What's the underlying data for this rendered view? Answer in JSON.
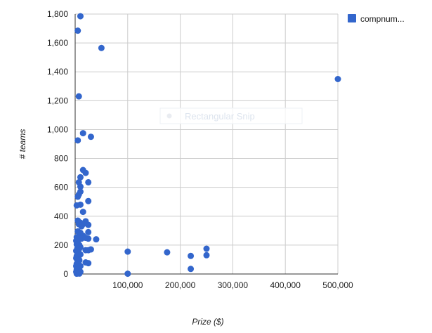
{
  "chart_data": {
    "type": "scatter",
    "title": "",
    "xlabel": "Prize ($)",
    "ylabel": "# teams",
    "xlim": [
      0,
      500000
    ],
    "ylim": [
      0,
      1800
    ],
    "x_ticks": [
      {
        "value": 100000,
        "label": "100,000"
      },
      {
        "value": 200000,
        "label": "200,000"
      },
      {
        "value": 300000,
        "label": "300,000"
      },
      {
        "value": 400000,
        "label": "400,000"
      },
      {
        "value": 500000,
        "label": "500,000"
      }
    ],
    "y_ticks": [
      {
        "value": 0,
        "label": "0"
      },
      {
        "value": 200,
        "label": "200"
      },
      {
        "value": 400,
        "label": "400"
      },
      {
        "value": 600,
        "label": "600"
      },
      {
        "value": 800,
        "label": "800"
      },
      {
        "value": 1000,
        "label": "1,000"
      },
      {
        "value": 1200,
        "label": "1,200"
      },
      {
        "value": 1400,
        "label": "1,400"
      },
      {
        "value": 1600,
        "label": "1,600"
      },
      {
        "value": 1800,
        "label": "1,800"
      }
    ],
    "grid": true,
    "legend_position": "right",
    "series": [
      {
        "name": "compnum...",
        "color": "#3366cc",
        "points": [
          [
            10000,
            1785
          ],
          [
            5000,
            1685
          ],
          [
            50000,
            1565
          ],
          [
            500000,
            1350
          ],
          [
            7000,
            1230
          ],
          [
            15000,
            975
          ],
          [
            30000,
            950
          ],
          [
            5000,
            925
          ],
          [
            15000,
            720
          ],
          [
            20000,
            700
          ],
          [
            10000,
            670
          ],
          [
            7000,
            635
          ],
          [
            25000,
            635
          ],
          [
            10000,
            605
          ],
          [
            10000,
            570
          ],
          [
            7000,
            550
          ],
          [
            5000,
            535
          ],
          [
            25000,
            505
          ],
          [
            10000,
            480
          ],
          [
            3000,
            475
          ],
          [
            15000,
            430
          ],
          [
            5000,
            370
          ],
          [
            10000,
            355
          ],
          [
            20000,
            365
          ],
          [
            7000,
            345
          ],
          [
            15000,
            345
          ],
          [
            25000,
            340
          ],
          [
            12000,
            330
          ],
          [
            5000,
            295
          ],
          [
            10000,
            285
          ],
          [
            25000,
            290
          ],
          [
            15000,
            265
          ],
          [
            3000,
            255
          ],
          [
            7000,
            255
          ],
          [
            12000,
            245
          ],
          [
            20000,
            250
          ],
          [
            40000,
            240
          ],
          [
            25000,
            245
          ],
          [
            2000,
            230
          ],
          [
            5000,
            215
          ],
          [
            3000,
            205
          ],
          [
            8000,
            200
          ],
          [
            6000,
            195
          ],
          [
            10000,
            185
          ],
          [
            4000,
            175
          ],
          [
            7000,
            170
          ],
          [
            20000,
            165
          ],
          [
            30000,
            170
          ],
          [
            25000,
            165
          ],
          [
            2000,
            160
          ],
          [
            5000,
            150
          ],
          [
            8000,
            140
          ],
          [
            10000,
            135
          ],
          [
            100000,
            155
          ],
          [
            175000,
            150
          ],
          [
            250000,
            175
          ],
          [
            220000,
            125
          ],
          [
            250000,
            130
          ],
          [
            3000,
            125
          ],
          [
            6000,
            115
          ],
          [
            2000,
            110
          ],
          [
            4000,
            100
          ],
          [
            8000,
            95
          ],
          [
            5000,
            85
          ],
          [
            20000,
            80
          ],
          [
            25000,
            75
          ],
          [
            3000,
            70
          ],
          [
            7000,
            65
          ],
          [
            2000,
            55
          ],
          [
            10000,
            55
          ],
          [
            4000,
            45
          ],
          [
            6000,
            40
          ],
          [
            220000,
            35
          ],
          [
            3000,
            30
          ],
          [
            8000,
            25
          ],
          [
            5000,
            20
          ],
          [
            2000,
            15
          ],
          [
            10000,
            15
          ],
          [
            4000,
            10
          ],
          [
            6000,
            5
          ],
          [
            3000,
            2
          ],
          [
            8000,
            3
          ],
          [
            100000,
            2
          ]
        ]
      }
    ]
  },
  "overlay": {
    "label": "Rectangular Snip"
  }
}
